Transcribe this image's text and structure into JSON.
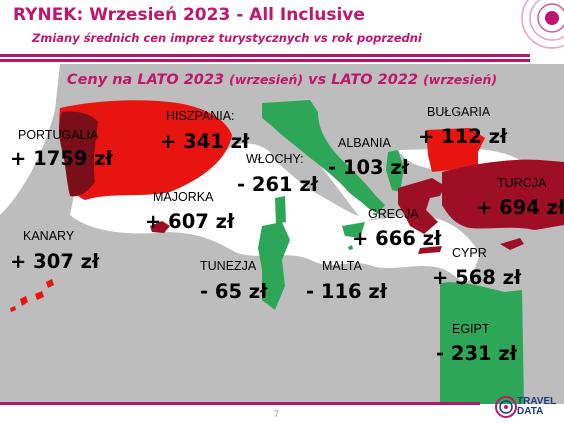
{
  "header": {
    "title": "RYNEK: Wrzesień 2023 - All Inclusive",
    "subtitle": "Zmiany średnich cen imprez turystycznych vs rok poprzedni"
  },
  "map": {
    "heading_main_a": "Ceny na LATO 2023 ",
    "heading_paren_a": "(wrzesień)",
    "heading_main_b": " vs  LATO 2022 ",
    "heading_paren_b": "(wrzesień)"
  },
  "countries": {
    "portugalia": {
      "label": "PORTUGALIA",
      "value": "+ 1759 zł",
      "color": "#7a0f1a"
    },
    "hiszpania": {
      "label": "HISZPANIA:",
      "value": "+ 341 zł",
      "color": "#e8140f"
    },
    "majorka": {
      "label": "MAJORKA",
      "value": "+ 607 zł",
      "color": "#9e0f25"
    },
    "kanary": {
      "label": "KANARY",
      "value": "+ 307 zł",
      "color": "#e8140f"
    },
    "wlochy": {
      "label": "WŁOCHY:",
      "value": "- 261 zł",
      "color": "#2ea657"
    },
    "albania": {
      "label": "ALBANIA",
      "value": "- 103 zł",
      "color": "#2ea657"
    },
    "bulgaria": {
      "label": "BUŁGARIA",
      "value": "+ 112 zł",
      "color": "#e8140f"
    },
    "turcja": {
      "label": "TURCJA",
      "value": "+ 694 zł",
      "color": "#9e0f25"
    },
    "grecja": {
      "label": "GRECJA",
      "value": "+ 666 zł",
      "color": "#9e0f25"
    },
    "tunezja": {
      "label": "TUNEZJA",
      "value": "- 65 zł",
      "color": "#2ea657"
    },
    "malta": {
      "label": "MALTA",
      "value": "- 116 zł",
      "color": "#2ea657"
    },
    "cypr": {
      "label": "CYPR",
      "value": "+ 568 zł",
      "color": "#9e0f25"
    },
    "egipt": {
      "label": "EGIPT",
      "value": "- 231 zł",
      "color": "#2ea657"
    }
  },
  "footer": {
    "page_number": "7",
    "logo_line1": "TRAVEL",
    "logo_line2": "DATA"
  },
  "colors": {
    "accent": "#c0166f",
    "increase": "#e8140f",
    "strong_increase": "#9e0f25",
    "decrease": "#2ea657",
    "sea": "#ffffff",
    "land": "#bdbdbd"
  }
}
